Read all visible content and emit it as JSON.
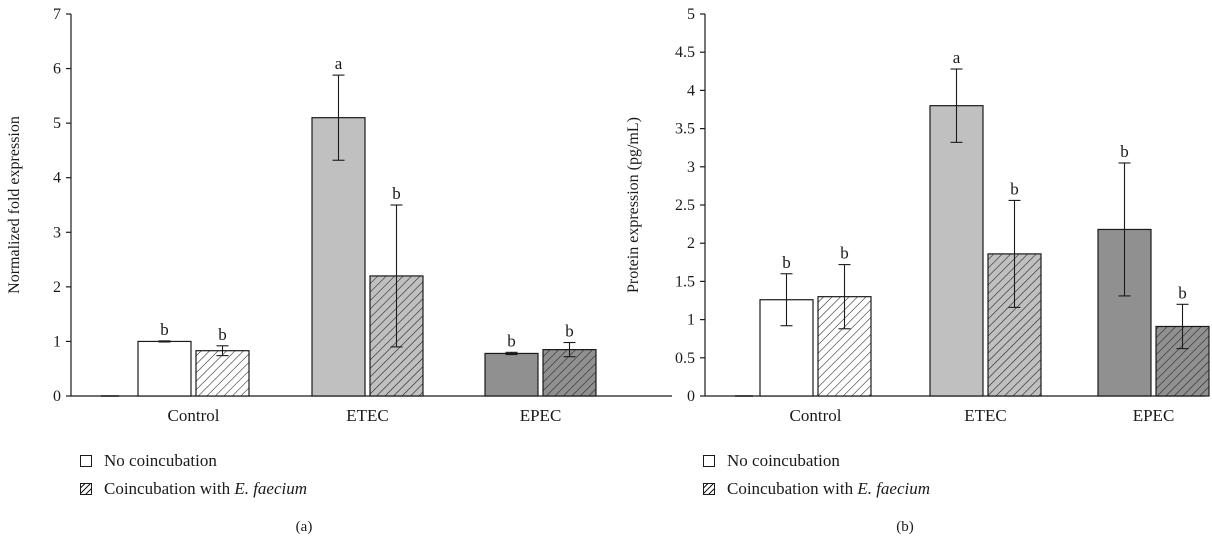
{
  "colors": {
    "fill_none": "#ffffff",
    "fill_control": "#ffffff",
    "fill_etec": "#c0c0c0",
    "fill_epec": "#909090",
    "stroke": "#1a1a1a"
  },
  "chart_data": [
    {
      "type": "bar",
      "caption": "(a)",
      "ylabel": "Normalized fold expression",
      "ylim": [
        0,
        7
      ],
      "yticks": [
        "0",
        "1",
        "2",
        "3",
        "4",
        "5",
        "6",
        "7"
      ],
      "categories": [
        "Control",
        "ETEC",
        "EPEC"
      ],
      "series": [
        {
          "name": "No coincubation",
          "values": [
            1.0,
            5.1,
            0.78
          ],
          "errors": [
            0.01,
            0.78,
            0.02
          ],
          "letters": [
            "b",
            "a",
            "b"
          ]
        },
        {
          "name": "Coincubation with E. faecium",
          "values": [
            0.83,
            2.2,
            0.85
          ],
          "errors": [
            0.09,
            1.3,
            0.13
          ],
          "letters": [
            "b",
            "b",
            "b"
          ]
        }
      ],
      "legend": {
        "items": [
          {
            "text": "No coincubation",
            "italic": ""
          },
          {
            "text": "Coincubation with ",
            "italic": "E. faecium"
          }
        ]
      }
    },
    {
      "type": "bar",
      "caption": "(b)",
      "ylabel": "Protein expression (pg/mL)",
      "ylim": [
        0,
        5
      ],
      "yticks": [
        "0",
        "0.5",
        "1",
        "1.5",
        "2",
        "2.5",
        "3",
        "3.5",
        "4",
        "4.5",
        "5"
      ],
      "categories": [
        "Control",
        "ETEC",
        "EPEC"
      ],
      "series": [
        {
          "name": "No coincubation",
          "values": [
            1.26,
            3.8,
            2.18
          ],
          "errors": [
            0.34,
            0.48,
            0.87
          ],
          "letters": [
            "b",
            "a",
            "b"
          ]
        },
        {
          "name": "Coincubation with E. faecium",
          "values": [
            1.3,
            1.86,
            0.91
          ],
          "errors": [
            0.42,
            0.7,
            0.29
          ],
          "letters": [
            "b",
            "b",
            "b"
          ]
        }
      ],
      "legend": {
        "items": [
          {
            "text": "No coincubation",
            "italic": ""
          },
          {
            "text": "Coincubation with ",
            "italic": "E. faecium"
          }
        ]
      }
    }
  ]
}
